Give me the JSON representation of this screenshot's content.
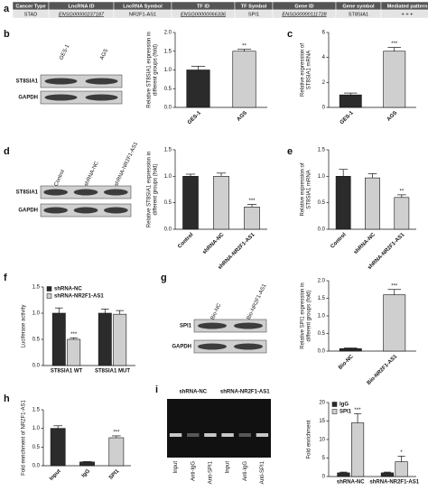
{
  "panel_labels": [
    "a",
    "b",
    "c",
    "d",
    "e",
    "f",
    "g",
    "h",
    "i"
  ],
  "table": {
    "header": [
      "Cancer Type",
      "LncRNA ID",
      "LncRNA Symbol",
      "TF ID",
      "TF Symbol",
      "Gene ID",
      "Gene symbol",
      "Mediated pattern"
    ],
    "rows": [
      [
        "STAD",
        "ENSG00000237187",
        "NR2F1-AS1",
        "ENSG00000066336",
        "SPI1",
        "ENSG00000111728",
        "ST8SIA1",
        "+ + +"
      ]
    ]
  },
  "blots": [
    {
      "lanes": [
        "GES-1",
        "AGS"
      ],
      "rows": [
        "ST8SIA1",
        "GAPDH"
      ]
    },
    {
      "lanes": [
        "Control",
        "shRNA-NC",
        "shRNA-NR2F1-AS1"
      ],
      "rows": [
        "ST8SIA1",
        "GAPDH"
      ]
    },
    {
      "lanes": [
        "Bio-NC",
        "Bio-NR2F1-AS1"
      ],
      "rows": [
        "SPI1",
        "GAPDH"
      ]
    }
  ],
  "gel": {
    "groups": [
      "shRNA-NC",
      "shRNA-NR2F1-AS1"
    ],
    "lanes": [
      "Input",
      "Anti-IgG",
      "Anti-SPI1",
      "Input",
      "Anti-IgG",
      "Anti-SPI1"
    ]
  },
  "chart_data": [
    {
      "type": "bar",
      "ylabel": [
        "Relative ST8SIA1 expression in",
        "different groups (fold)"
      ],
      "categories": [
        "GES-1",
        "AGS"
      ],
      "values": [
        1.0,
        1.5
      ],
      "errors": [
        0.1,
        0.05
      ],
      "colors": [
        "#2b2b2b",
        "#cfcfcf"
      ],
      "annotations": [
        null,
        "**"
      ],
      "ylim": [
        0,
        2
      ],
      "yticks": [
        {
          "value": 0,
          "label": "0.0"
        },
        {
          "value": 0.5,
          "label": "0.5"
        },
        {
          "value": 1,
          "label": "1.0"
        },
        {
          "value": 1.5,
          "label": "1.5"
        },
        {
          "value": 2,
          "label": "2.0"
        }
      ]
    },
    {
      "type": "bar",
      "ylabel": [
        "Relative expression of",
        "ST8SIA1 mRNA"
      ],
      "categories": [
        "GES-1",
        "AGS"
      ],
      "values": [
        1.0,
        4.5
      ],
      "errors": [
        0.15,
        0.3
      ],
      "colors": [
        "#2b2b2b",
        "#cfcfcf"
      ],
      "annotations": [
        null,
        "***"
      ],
      "ylim": [
        0,
        6
      ],
      "yticks": [
        0,
        2,
        4,
        6
      ]
    },
    {
      "type": "bar",
      "ylabel": [
        "Relative ST8SIA1 expression in",
        "different groups (fold)"
      ],
      "categories": [
        "Control",
        "shRNA-NC",
        "shRNA-NR2F1-AS1"
      ],
      "values": [
        1.0,
        1.0,
        0.42
      ],
      "errors": [
        0.04,
        0.06,
        0.05
      ],
      "colors": [
        "#2b2b2b",
        "#cfcfcf",
        "#cfcfcf"
      ],
      "annotations": [
        null,
        null,
        "***"
      ],
      "ylim": [
        0,
        1.5
      ],
      "yticks": [
        {
          "value": 0,
          "label": "0.0"
        },
        {
          "value": 0.5,
          "label": "0.5"
        },
        {
          "value": 1,
          "label": "1.0"
        },
        {
          "value": 1.5,
          "label": "1.5"
        }
      ]
    },
    {
      "type": "bar",
      "ylabel": [
        "Relative expression of",
        "ST8SIA1 mRNA"
      ],
      "categories": [
        "Control",
        "shRNA-NC",
        "shRNA-NR2F1-AS1"
      ],
      "values": [
        1.0,
        0.97,
        0.6
      ],
      "errors": [
        0.13,
        0.08,
        0.05
      ],
      "colors": [
        "#2b2b2b",
        "#cfcfcf",
        "#cfcfcf"
      ],
      "annotations": [
        null,
        null,
        "**"
      ],
      "ylim": [
        0,
        1.5
      ],
      "yticks": [
        {
          "value": 0,
          "label": "0.0"
        },
        {
          "value": 0.5,
          "label": "0.5"
        },
        {
          "value": 1,
          "label": "1.0"
        },
        {
          "value": 1.5,
          "label": "1.5"
        }
      ]
    },
    {
      "type": "grouped-bar",
      "ylabel": [
        "Luciferase activity"
      ],
      "categories": [
        "ST8SIA1 WT",
        "ST8SIA1 MUT"
      ],
      "series": [
        {
          "name": "shRNA-NC",
          "color": "#2b2b2b",
          "values": [
            1.0,
            1.0
          ],
          "errors": [
            0.1,
            0.08
          ],
          "annotations": [
            null,
            null
          ]
        },
        {
          "name": "shRNA-NR2F1-AS1",
          "color": "#cfcfcf",
          "values": [
            0.5,
            0.98
          ],
          "errors": [
            0.03,
            0.07
          ],
          "annotations": [
            "***",
            null
          ]
        }
      ],
      "ylim": [
        0,
        1.5
      ],
      "yticks": [
        {
          "value": 0,
          "label": "0.0"
        },
        {
          "value": 0.5,
          "label": "0.5"
        },
        {
          "value": 1,
          "label": "1.0"
        },
        {
          "value": 1.5,
          "label": "1.5"
        }
      ]
    },
    {
      "type": "bar",
      "ylabel": [
        "Relative SPI1 expression in",
        "different groups (fold)"
      ],
      "categories": [
        "Bio-NC",
        "Bio-NR2F1-AS1"
      ],
      "values": [
        0.07,
        1.6
      ],
      "errors": [
        0.02,
        0.15
      ],
      "colors": [
        "#2b2b2b",
        "#cfcfcf"
      ],
      "annotations": [
        null,
        "***"
      ],
      "ylim": [
        0,
        2
      ],
      "yticks": [
        {
          "value": 0,
          "label": "0.0"
        },
        {
          "value": 0.5,
          "label": "0.5"
        },
        {
          "value": 1,
          "label": "1.0"
        },
        {
          "value": 1.5,
          "label": "1.5"
        },
        {
          "value": 2,
          "label": "2.0"
        }
      ]
    },
    {
      "type": "bar",
      "ylabel": [
        "Fold enrichment of NR2F1-AS1"
      ],
      "categories": [
        "Input",
        "IgG",
        "SPI1"
      ],
      "values": [
        1.0,
        0.1,
        0.75
      ],
      "errors": [
        0.07,
        0.01,
        0.05
      ],
      "colors": [
        "#2b2b2b",
        "#2b2b2b",
        "#cfcfcf"
      ],
      "annotations": [
        null,
        null,
        "***"
      ],
      "ylim": [
        0,
        1.5
      ],
      "yticks": [
        {
          "value": 0,
          "label": "0.0"
        },
        {
          "value": 0.5,
          "label": "0.5"
        },
        {
          "value": 1,
          "label": "1.0"
        },
        {
          "value": 1.5,
          "label": "1.5"
        }
      ]
    },
    {
      "type": "grouped-bar",
      "ylabel": [
        "Fold enrichment"
      ],
      "categories": [
        "shRNA-NC",
        "shRNA-NR2F1-AS1"
      ],
      "series": [
        {
          "name": "IgG",
          "color": "#2b2b2b",
          "values": [
            1.0,
            1.0
          ],
          "errors": [
            0.2,
            0.2
          ],
          "annotations": [
            null,
            null
          ]
        },
        {
          "name": "SPI1",
          "color": "#cfcfcf",
          "values": [
            14.5,
            4.0
          ],
          "errors": [
            2.5,
            1.5
          ],
          "annotations": [
            "***",
            "*"
          ]
        }
      ],
      "ylim": [
        0,
        20
      ],
      "yticks": [
        0,
        5,
        10,
        15,
        20
      ]
    }
  ]
}
